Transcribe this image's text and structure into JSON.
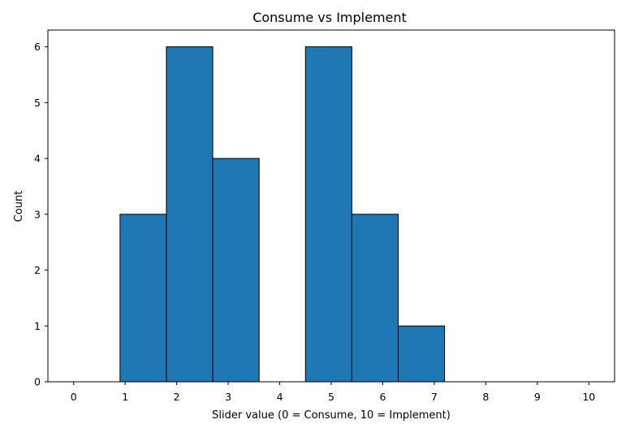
{
  "chart_data": {
    "type": "bar",
    "title": "Consume vs Implement",
    "xlabel": "Slider value (0 = Consume, 10 = Implement)",
    "ylabel": "Count",
    "bins": [
      {
        "start": 0.0,
        "end": 0.9,
        "count": 0
      },
      {
        "start": 0.9,
        "end": 1.8,
        "count": 3
      },
      {
        "start": 1.8,
        "end": 2.7,
        "count": 6
      },
      {
        "start": 2.7,
        "end": 3.6,
        "count": 4
      },
      {
        "start": 3.6,
        "end": 4.5,
        "count": 0
      },
      {
        "start": 4.5,
        "end": 5.4,
        "count": 6
      },
      {
        "start": 5.4,
        "end": 6.3,
        "count": 3
      },
      {
        "start": 6.3,
        "end": 7.2,
        "count": 1
      },
      {
        "start": 7.2,
        "end": 8.1,
        "count": 0
      },
      {
        "start": 8.1,
        "end": 9.0,
        "count": 0
      },
      {
        "start": 9.0,
        "end": 10.0,
        "count": 0
      }
    ],
    "xlim": [
      -0.5,
      10.5
    ],
    "ylim": [
      0,
      6.3
    ],
    "xticks": [
      0,
      1,
      2,
      3,
      4,
      5,
      6,
      7,
      8,
      9,
      10
    ],
    "yticks": [
      0,
      1,
      2,
      3,
      4,
      5,
      6
    ],
    "grid": false,
    "bar_color": "#1f77b4",
    "edge_color": "#000000"
  }
}
